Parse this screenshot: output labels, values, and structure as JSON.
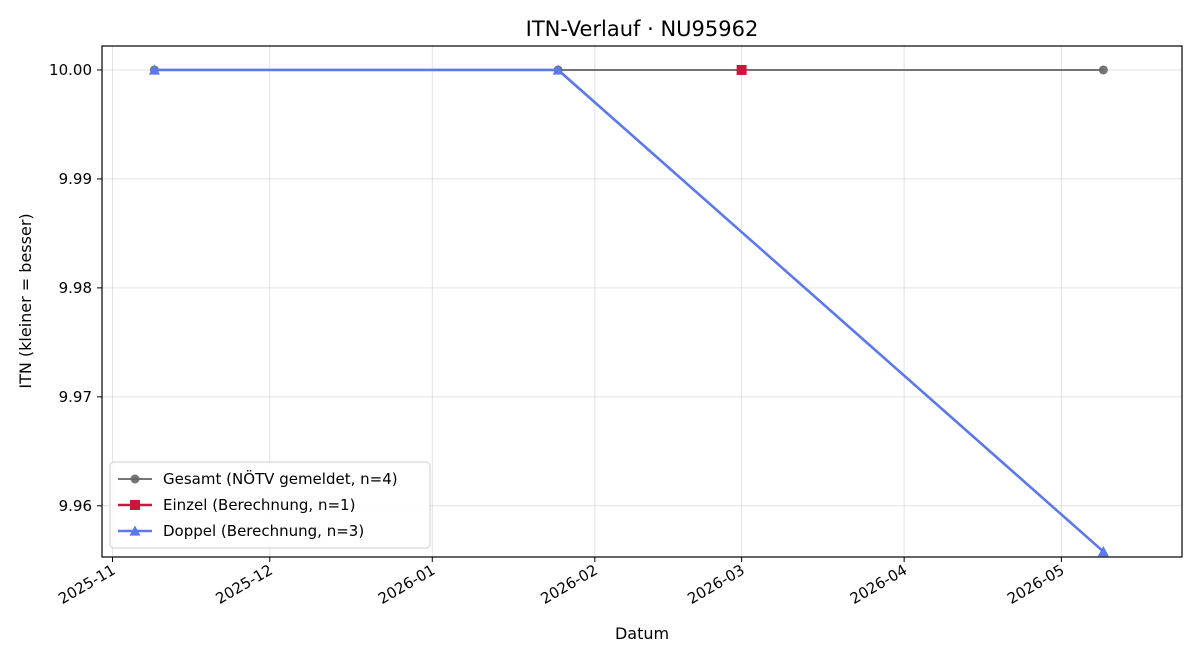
{
  "chart_data": {
    "type": "line",
    "title": "ITN-Verlauf · NU95962",
    "xlabel": "Datum",
    "ylabel": "ITN  (kleiner = besser)",
    "x_axis": "date",
    "xlim": [
      "2025-10-30",
      "2026-05-24"
    ],
    "ylim": [
      9.9553,
      10.0022
    ],
    "x_ticks": [
      "2025-11-01",
      "2025-12-01",
      "2026-01-01",
      "2026-02-01",
      "2026-03-01",
      "2026-04-01",
      "2026-05-01"
    ],
    "x_tick_labels": [
      "2025-11",
      "2025-12",
      "2026-01",
      "2026-02",
      "2026-03",
      "2026-04",
      "2026-05"
    ],
    "y_ticks": [
      9.96,
      9.97,
      9.98,
      9.99,
      10.0
    ],
    "y_tick_labels": [
      "9.96",
      "9.97",
      "9.98",
      "9.99",
      "10.00"
    ],
    "grid": true,
    "legend_position": "bottom-left",
    "series": [
      {
        "name": "Gesamt (NÖTV gemeldet, n=4)",
        "color": "#666666",
        "marker": "circle",
        "points": [
          {
            "x": "2025-11-09",
            "y": 10.0
          },
          {
            "x": "2026-01-25",
            "y": 10.0
          },
          {
            "x": "2026-03-01",
            "y": 10.0
          },
          {
            "x": "2026-05-09",
            "y": 10.0
          }
        ]
      },
      {
        "name": "Einzel (Berechnung, n=1)",
        "color": "#c8193c",
        "marker": "square",
        "points": [
          {
            "x": "2026-03-01",
            "y": 10.0
          }
        ]
      },
      {
        "name": "Doppel (Berechnung, n=3)",
        "color": "#5b78ec",
        "marker": "triangle",
        "points": [
          {
            "x": "2025-11-09",
            "y": 10.0
          },
          {
            "x": "2026-01-25",
            "y": 10.0
          },
          {
            "x": "2026-05-09",
            "y": 9.9558
          }
        ]
      }
    ]
  }
}
